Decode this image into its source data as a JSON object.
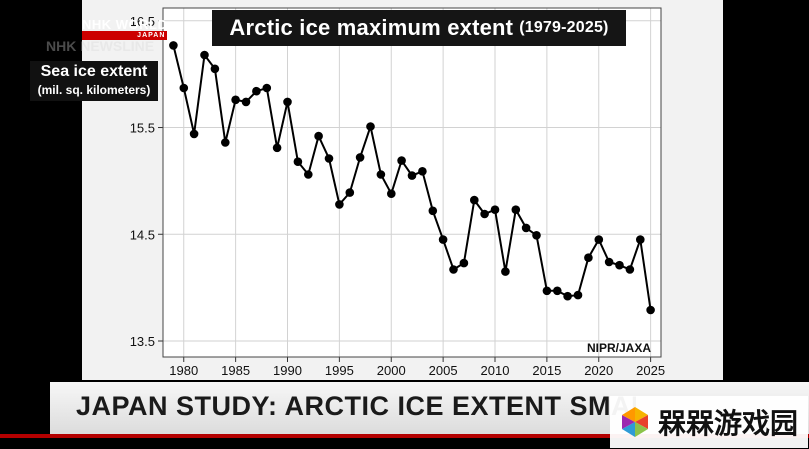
{
  "broadcaster": {
    "logo": "NHK WORLD",
    "logo_sub": "JAPAN",
    "ghost_text": "NHK NEWSLINE"
  },
  "headline": "JAPAN STUDY: ARCTIC ICE EXTENT SMALLEST ON RECORD",
  "watermark": {
    "text": "槑槑游戏园"
  },
  "colors": {
    "series": "#000000",
    "panel_background": "#f2f2f2",
    "banner_red": "#b40000"
  },
  "chart_data": {
    "type": "line",
    "title": "Arctic ice maximum extent",
    "title_range": "(1979-2025)",
    "ylabel": "Sea ice extent",
    "yunit": "(mil. sq. kilometers)",
    "source": "NIPR/JAXA",
    "xlim": [
      1978,
      2026
    ],
    "ylim": [
      13.35,
      16.62
    ],
    "xticks": [
      1980,
      1985,
      1990,
      1995,
      2000,
      2005,
      2010,
      2015,
      2020,
      2025
    ],
    "yticks": [
      13.5,
      14.5,
      15.5,
      16.5
    ],
    "ytick_labels": [
      "13.5",
      "14.5",
      "15.5",
      "16.5"
    ],
    "grid": true,
    "markers": true,
    "x": [
      1979,
      1980,
      1981,
      1982,
      1983,
      1984,
      1985,
      1986,
      1987,
      1988,
      1989,
      1990,
      1991,
      1992,
      1993,
      1994,
      1995,
      1996,
      1997,
      1998,
      1999,
      2000,
      2001,
      2002,
      2003,
      2004,
      2005,
      2006,
      2007,
      2008,
      2009,
      2010,
      2011,
      2012,
      2013,
      2014,
      2015,
      2016,
      2017,
      2018,
      2019,
      2020,
      2021,
      2022,
      2023,
      2024,
      2025
    ],
    "values": [
      16.27,
      15.87,
      15.44,
      16.18,
      16.05,
      15.36,
      15.76,
      15.74,
      15.84,
      15.87,
      15.31,
      15.74,
      15.18,
      15.06,
      15.42,
      15.21,
      14.78,
      14.89,
      15.22,
      15.51,
      15.06,
      14.88,
      15.19,
      15.05,
      15.09,
      14.72,
      14.45,
      14.17,
      14.23,
      14.82,
      14.69,
      14.73,
      14.15,
      14.73,
      14.56,
      14.49,
      13.97,
      13.97,
      13.92,
      13.93,
      14.28,
      14.45,
      14.24,
      14.21,
      14.17,
      14.45,
      13.79
    ]
  }
}
